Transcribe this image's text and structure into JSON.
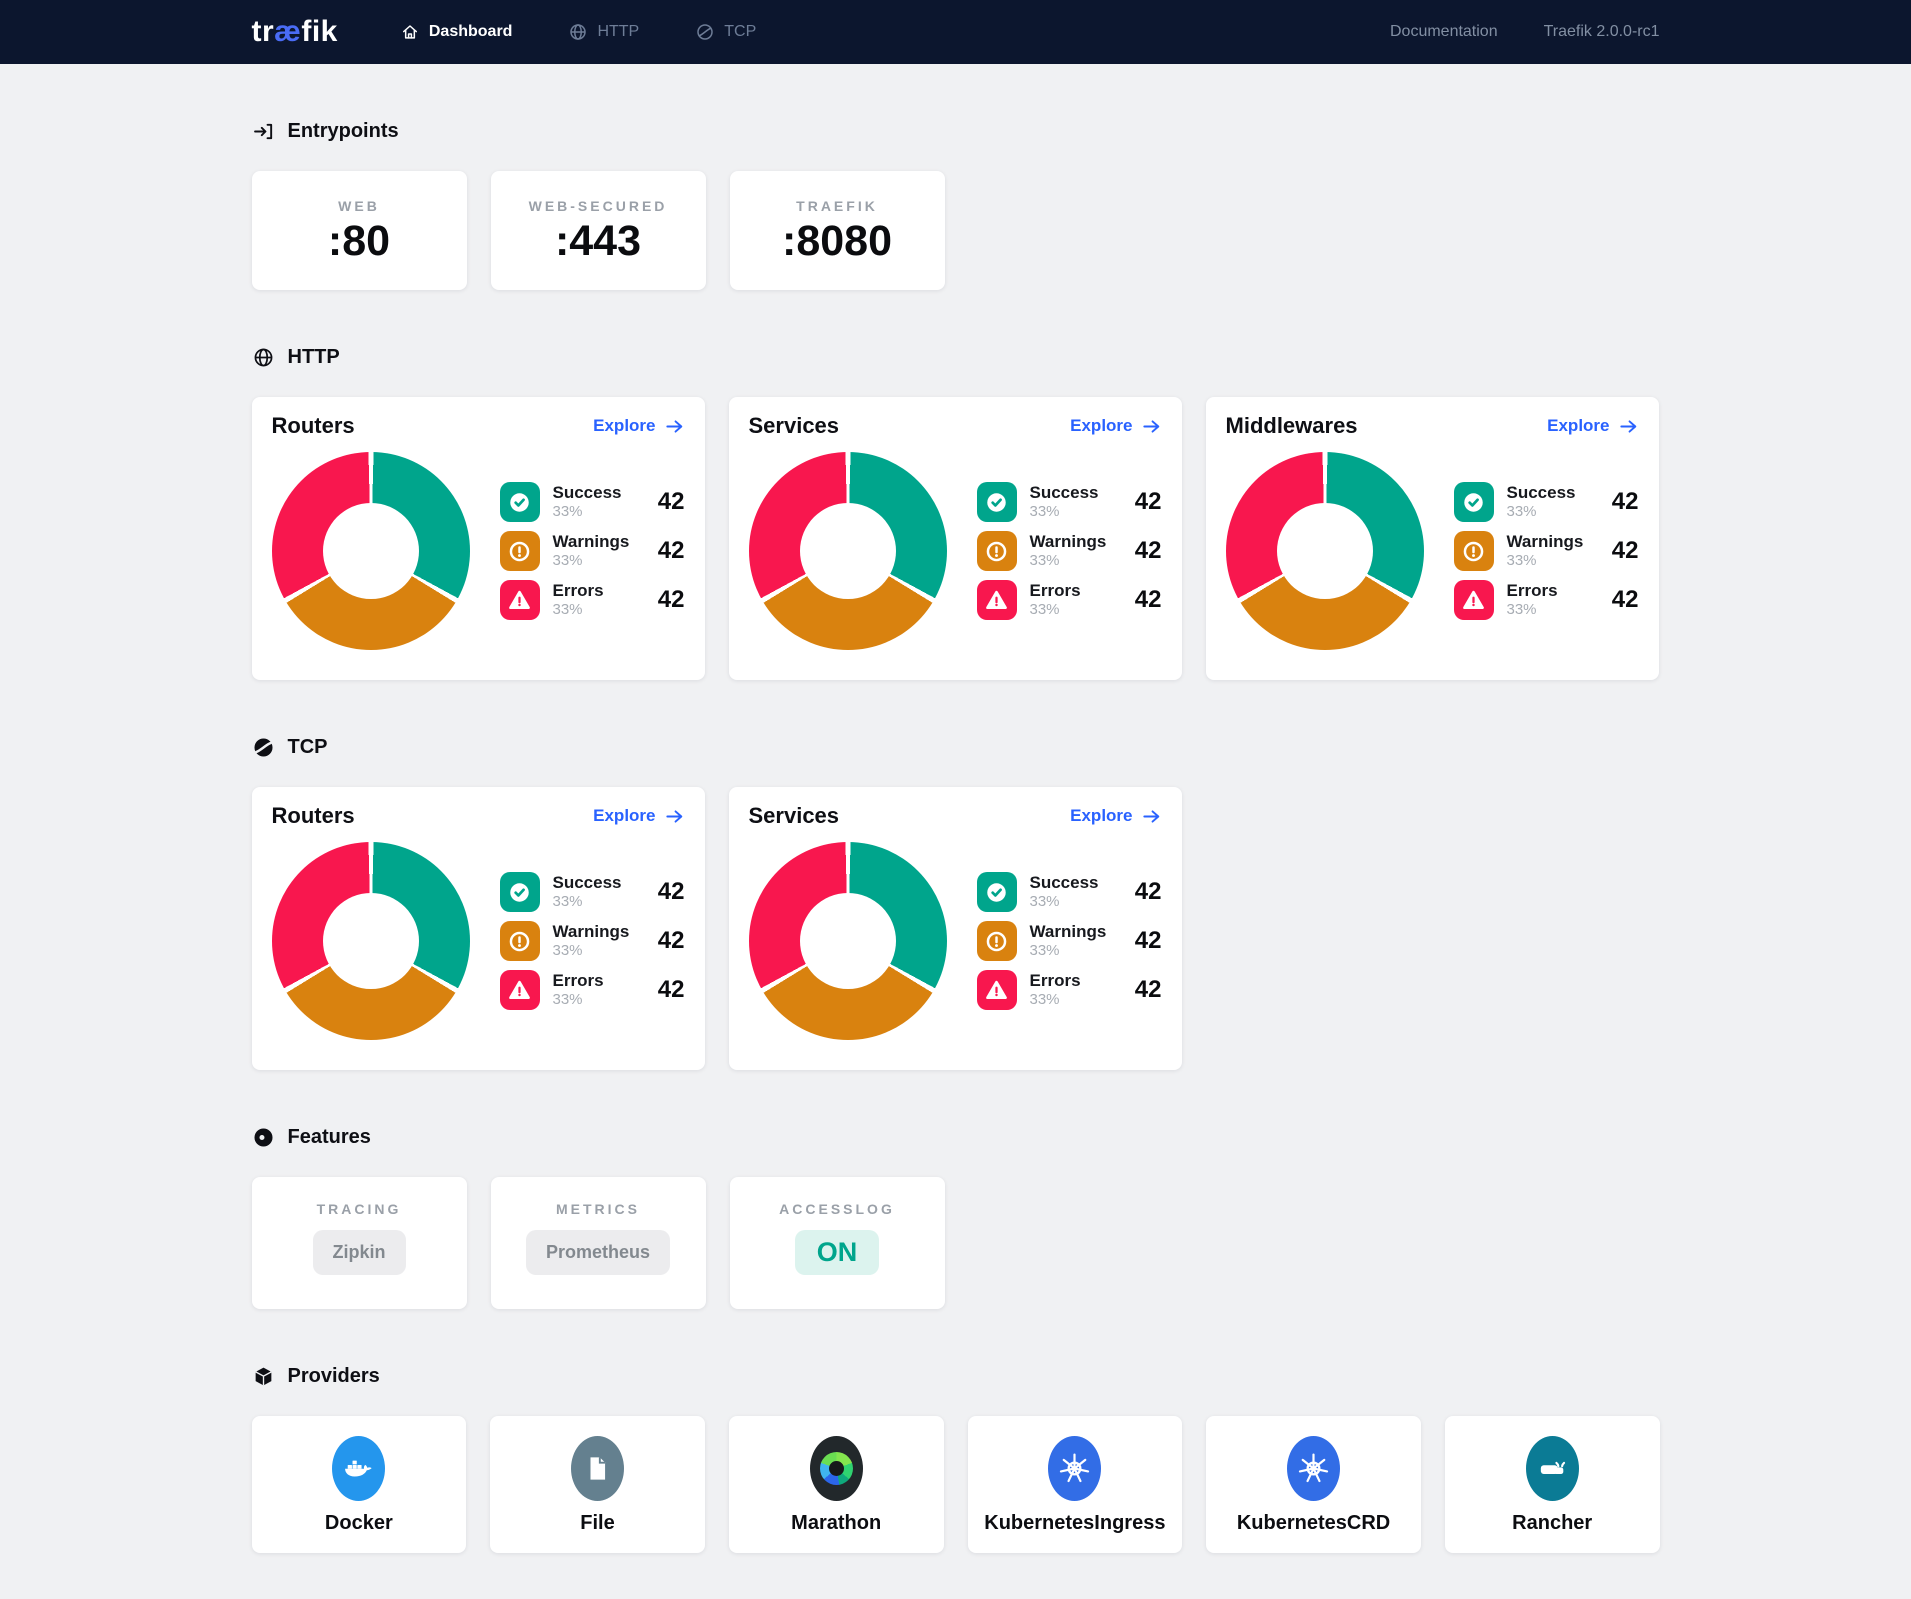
{
  "navbar": {
    "logo": {
      "part1": "tr",
      "part2": "æ",
      "part3": "fik"
    },
    "items": [
      {
        "label": "Dashboard",
        "active": true
      },
      {
        "label": "HTTP",
        "active": false
      },
      {
        "label": "TCP",
        "active": false
      }
    ],
    "documentation": "Documentation",
    "version": "Traefik 2.0.0-rc1"
  },
  "entrypoints": {
    "title": "Entrypoints",
    "cards": [
      {
        "label": "WEB",
        "value": ":80"
      },
      {
        "label": "WEB-SECURED",
        "value": ":443"
      },
      {
        "label": "TRAEFIK",
        "value": ":8080"
      }
    ]
  },
  "http": {
    "title": "HTTP",
    "cards": [
      {
        "title": "Routers",
        "explore": "Explore"
      },
      {
        "title": "Services",
        "explore": "Explore"
      },
      {
        "title": "Middlewares",
        "explore": "Explore"
      }
    ]
  },
  "tcp": {
    "title": "TCP",
    "cards": [
      {
        "title": "Routers",
        "explore": "Explore"
      },
      {
        "title": "Services",
        "explore": "Explore"
      }
    ]
  },
  "legend": [
    {
      "label": "Success",
      "pct": "33%",
      "value": "42",
      "color": "#00a58c",
      "icon": "success-icon"
    },
    {
      "label": "Warnings",
      "pct": "33%",
      "value": "42",
      "color": "#d9820f",
      "icon": "warning-icon"
    },
    {
      "label": "Errors",
      "pct": "33%",
      "value": "42",
      "color": "#f8174e",
      "icon": "error-icon"
    }
  ],
  "features": {
    "title": "Features",
    "cards": [
      {
        "label": "TRACING",
        "value": "Zipkin",
        "on": false
      },
      {
        "label": "METRICS",
        "value": "Prometheus",
        "on": false
      },
      {
        "label": "ACCESSLOG",
        "value": "ON",
        "on": true
      }
    ]
  },
  "providers": {
    "title": "Providers",
    "cards": [
      {
        "label": "Docker",
        "icon": "docker-icon"
      },
      {
        "label": "File",
        "icon": "file-icon"
      },
      {
        "label": "Marathon",
        "icon": "marathon-icon"
      },
      {
        "label": "KubernetesIngress",
        "icon": "kubernetes-icon"
      },
      {
        "label": "KubernetesCRD",
        "icon": "kubernetes-icon"
      },
      {
        "label": "Rancher",
        "icon": "rancher-icon"
      }
    ]
  },
  "colors": {
    "navbar_bg": "#0c162e",
    "page_bg": "#f0f1f3",
    "accent_blue": "#2962ff",
    "logo_ae": "#4a6cf5",
    "success": "#00a58c",
    "warning": "#d9820f",
    "error": "#f8174e",
    "on_pill_bg": "#dcf3ee",
    "provider_bg": {
      "docker-icon": "#2496ed",
      "file-icon": "#64808f",
      "marathon-icon": "#22282b",
      "kubernetes-icon": "#326de6",
      "rancher-icon": "#0b7b95"
    },
    "marathon_segments": [
      "#84e54e",
      "#2fd370",
      "#0fa97c",
      "#2b66ea",
      "#3fb4ee",
      "#6ade52"
    ]
  },
  "chart_data": [
    {
      "type": "pie",
      "title": "HTTP Routers",
      "categories": [
        "Success",
        "Warnings",
        "Errors"
      ],
      "values": [
        42,
        42,
        42
      ],
      "percent_labels": [
        "33%",
        "33%",
        "33%"
      ],
      "colors": [
        "#00a58c",
        "#d9820f",
        "#f8174e"
      ],
      "legend_position": "right"
    },
    {
      "type": "pie",
      "title": "HTTP Services",
      "categories": [
        "Success",
        "Warnings",
        "Errors"
      ],
      "values": [
        42,
        42,
        42
      ],
      "percent_labels": [
        "33%",
        "33%",
        "33%"
      ],
      "colors": [
        "#00a58c",
        "#d9820f",
        "#f8174e"
      ],
      "legend_position": "right"
    },
    {
      "type": "pie",
      "title": "HTTP Middlewares",
      "categories": [
        "Success",
        "Warnings",
        "Errors"
      ],
      "values": [
        42,
        42,
        42
      ],
      "percent_labels": [
        "33%",
        "33%",
        "33%"
      ],
      "colors": [
        "#00a58c",
        "#d9820f",
        "#f8174e"
      ],
      "legend_position": "right"
    },
    {
      "type": "pie",
      "title": "TCP Routers",
      "categories": [
        "Success",
        "Warnings",
        "Errors"
      ],
      "values": [
        42,
        42,
        42
      ],
      "percent_labels": [
        "33%",
        "33%",
        "33%"
      ],
      "colors": [
        "#00a58c",
        "#d9820f",
        "#f8174e"
      ],
      "legend_position": "right"
    },
    {
      "type": "pie",
      "title": "TCP Services",
      "categories": [
        "Success",
        "Warnings",
        "Errors"
      ],
      "values": [
        42,
        42,
        42
      ],
      "percent_labels": [
        "33%",
        "33%",
        "33%"
      ],
      "colors": [
        "#00a58c",
        "#d9820f",
        "#f8174e"
      ],
      "legend_position": "right"
    }
  ]
}
